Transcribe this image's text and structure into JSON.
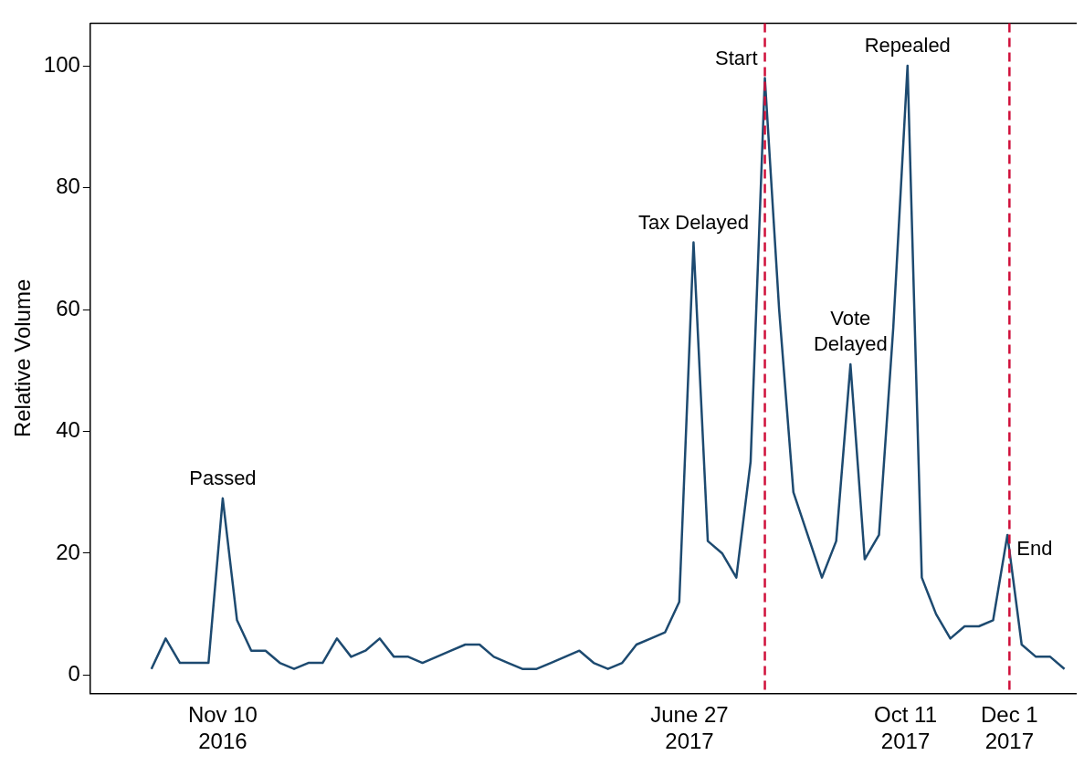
{
  "chart_data": {
    "type": "line",
    "ylabel": "Relative Volume",
    "x": [
      "2016-10-06",
      "2016-10-13",
      "2016-10-20",
      "2016-10-27",
      "2016-11-03",
      "2016-11-10",
      "2016-11-17",
      "2016-11-24",
      "2016-12-01",
      "2016-12-08",
      "2016-12-15",
      "2016-12-22",
      "2016-12-29",
      "2017-01-05",
      "2017-01-12",
      "2017-01-19",
      "2017-01-26",
      "2017-02-02",
      "2017-02-09",
      "2017-02-16",
      "2017-02-23",
      "2017-03-02",
      "2017-03-09",
      "2017-03-16",
      "2017-03-23",
      "2017-03-30",
      "2017-04-06",
      "2017-04-13",
      "2017-04-20",
      "2017-04-27",
      "2017-05-04",
      "2017-05-11",
      "2017-05-18",
      "2017-05-25",
      "2017-06-01",
      "2017-06-08",
      "2017-06-15",
      "2017-06-22",
      "2017-06-29",
      "2017-07-06",
      "2017-07-13",
      "2017-07-20",
      "2017-07-27",
      "2017-08-03",
      "2017-08-10",
      "2017-08-17",
      "2017-08-24",
      "2017-08-31",
      "2017-09-07",
      "2017-09-14",
      "2017-09-21",
      "2017-09-28",
      "2017-10-05",
      "2017-10-12",
      "2017-10-19",
      "2017-10-26",
      "2017-11-02",
      "2017-11-09",
      "2017-11-16",
      "2017-11-23",
      "2017-11-30",
      "2017-12-07",
      "2017-12-14",
      "2017-12-21",
      "2017-12-28"
    ],
    "series": [
      {
        "color": "#1d4a70",
        "values": [
          1,
          6,
          2,
          2,
          2,
          29,
          9,
          4,
          4,
          2,
          1,
          2,
          2,
          6,
          3,
          4,
          6,
          3,
          3,
          2,
          3,
          4,
          5,
          5,
          3,
          2,
          1,
          1,
          2,
          3,
          4,
          2,
          1,
          2,
          5,
          6,
          7,
          12,
          71,
          22,
          20,
          16,
          35,
          98,
          60,
          30,
          23,
          16,
          22,
          51,
          19,
          23,
          57,
          100,
          16,
          10,
          6,
          8,
          8,
          9,
          23,
          5,
          3,
          3,
          1
        ]
      }
    ],
    "xlim": [
      "2016-09-06",
      "2018-01-03"
    ],
    "xticks": [
      {
        "value": "2016-11-10",
        "label": "Nov 10\n2016"
      },
      {
        "value": "2017-06-27",
        "label": "June 27\n2017"
      },
      {
        "value": "2017-10-11",
        "label": "Oct 11\n2017"
      },
      {
        "value": "2017-12-01",
        "label": "Dec 1\n2017"
      }
    ],
    "ylim": [
      -3,
      107
    ],
    "yticks": [
      0,
      20,
      40,
      60,
      80,
      100
    ],
    "ref_lines": [
      {
        "axis": "x",
        "value": "2017-08-03",
        "label": "Start",
        "color": "#d0103a",
        "line_style": "dashed"
      },
      {
        "axis": "x",
        "value": "2017-12-01",
        "label": "End",
        "color": "#d0103a",
        "line_style": "dashed"
      }
    ],
    "annotations": [
      {
        "text": "Passed",
        "x": "2016-11-10",
        "y": 29
      },
      {
        "text": "Tax Delayed",
        "x": "2017-06-29",
        "y": 71
      },
      {
        "text": "Vote\nDelayed",
        "x": "2017-09-14",
        "y": 51
      },
      {
        "text": "Repealed",
        "x": "2017-10-12",
        "y": 100
      }
    ],
    "grid": false,
    "legend": false,
    "marker": "none",
    "line_style": "solid"
  }
}
